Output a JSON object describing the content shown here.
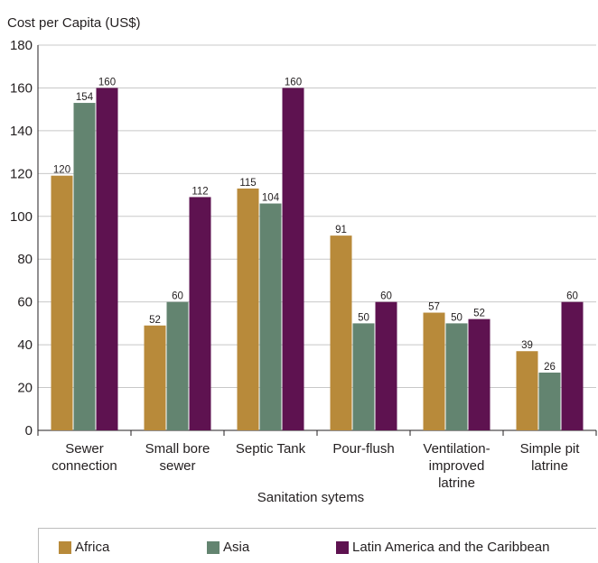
{
  "chart_data": {
    "type": "bar",
    "title": "",
    "ylabel": "Cost per Capita (US$)",
    "xlabel": "Sanitation sytems",
    "ylim": [
      0,
      180
    ],
    "yticks": [
      0,
      20,
      40,
      60,
      80,
      100,
      120,
      140,
      160,
      180
    ],
    "categories": [
      [
        "Sewer",
        "connection"
      ],
      [
        "Small bore",
        "sewer"
      ],
      [
        "Septic Tank"
      ],
      [
        "Pour-flush"
      ],
      [
        "Ventilation-",
        "improved",
        "latrine"
      ],
      [
        "Simple pit",
        "latrine"
      ]
    ],
    "series": [
      {
        "name": "Africa",
        "color": "#b88a3a",
        "values": [
          120,
          52,
          115,
          91,
          57,
          39
        ],
        "plotted": [
          119,
          49,
          113,
          91,
          55,
          37
        ]
      },
      {
        "name": "Asia",
        "color": "#638470",
        "values": [
          154,
          60,
          104,
          50,
          50,
          26
        ],
        "plotted": [
          153,
          60,
          106,
          50,
          50,
          27
        ]
      },
      {
        "name": "Latin America and the Caribbean",
        "color": "#5e1250",
        "values": [
          160,
          112,
          160,
          60,
          52,
          60
        ],
        "plotted": [
          160,
          109,
          160,
          60,
          52,
          60
        ]
      }
    ],
    "grid": true,
    "legend_position": "bottom"
  }
}
